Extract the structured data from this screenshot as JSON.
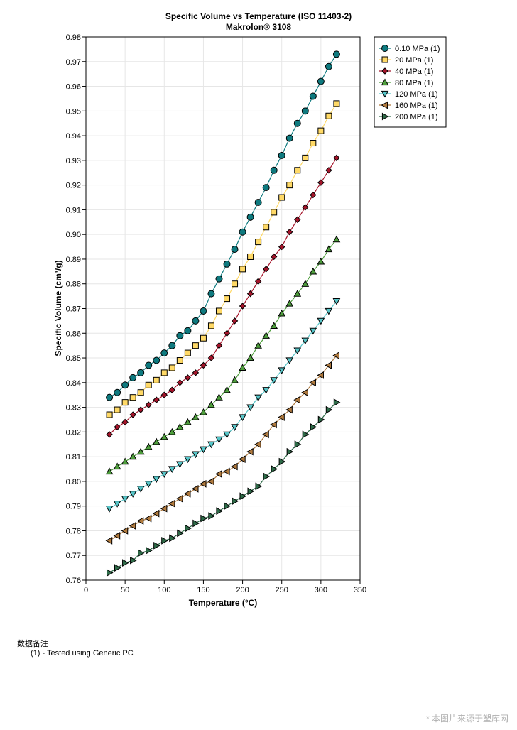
{
  "chart_data": {
    "type": "line",
    "title": "Specific Volume vs Temperature (ISO 11403-2)",
    "subtitle": "Makrolon® 3108",
    "xlabel": "Temperature (°C)",
    "ylabel": "Specific Volume (cm³/g)",
    "xlim": [
      0,
      350
    ],
    "ylim": [
      0.76,
      0.98
    ],
    "xticks": [
      0,
      50,
      100,
      150,
      200,
      250,
      300,
      350
    ],
    "yticks": [
      0.76,
      0.77,
      0.78,
      0.79,
      0.8,
      0.81,
      0.82,
      0.83,
      0.84,
      0.85,
      0.86,
      0.87,
      0.88,
      0.89,
      0.9,
      0.91,
      0.92,
      0.93,
      0.94,
      0.95,
      0.96,
      0.97,
      0.98
    ],
    "grid": true,
    "legend_position": "top-right",
    "x": [
      30,
      40,
      50,
      60,
      70,
      80,
      90,
      100,
      110,
      120,
      130,
      140,
      150,
      160,
      170,
      180,
      190,
      200,
      210,
      220,
      230,
      240,
      250,
      260,
      270,
      280,
      290,
      300,
      310,
      320
    ],
    "series": [
      {
        "name": "0.10 MPa (1)",
        "color": "#0e7a7f",
        "marker": "circle",
        "values": [
          0.834,
          0.836,
          0.839,
          0.842,
          0.844,
          0.847,
          0.849,
          0.852,
          0.855,
          0.859,
          0.861,
          0.865,
          0.869,
          0.876,
          0.882,
          0.888,
          0.894,
          0.901,
          0.907,
          0.913,
          0.919,
          0.926,
          0.932,
          0.939,
          0.945,
          0.95,
          0.956,
          0.962,
          0.968,
          0.973
        ]
      },
      {
        "name": "20 MPa (1)",
        "color": "#ffd966",
        "marker": "square",
        "values": [
          0.827,
          0.829,
          0.832,
          0.834,
          0.836,
          0.839,
          0.841,
          0.844,
          0.846,
          0.849,
          0.852,
          0.855,
          0.858,
          0.863,
          0.869,
          0.874,
          0.88,
          0.886,
          0.891,
          0.897,
          0.903,
          0.909,
          0.915,
          0.92,
          0.926,
          0.931,
          0.937,
          0.942,
          0.948,
          0.953
        ]
      },
      {
        "name": "40 MPa (1)",
        "color": "#a5142a",
        "marker": "diamond",
        "values": [
          0.819,
          0.822,
          0.824,
          0.827,
          0.829,
          0.831,
          0.833,
          0.835,
          0.837,
          0.84,
          0.842,
          0.844,
          0.847,
          0.85,
          0.855,
          0.86,
          0.865,
          0.871,
          0.876,
          0.881,
          0.886,
          0.891,
          0.895,
          0.901,
          0.906,
          0.911,
          0.916,
          0.921,
          0.926,
          0.931
        ]
      },
      {
        "name": "80 MPa (1)",
        "color": "#4e9e3c",
        "marker": "triangle-up",
        "values": [
          0.804,
          0.806,
          0.808,
          0.81,
          0.812,
          0.814,
          0.816,
          0.818,
          0.82,
          0.822,
          0.824,
          0.826,
          0.828,
          0.831,
          0.834,
          0.837,
          0.841,
          0.846,
          0.85,
          0.855,
          0.859,
          0.863,
          0.868,
          0.872,
          0.876,
          0.88,
          0.885,
          0.889,
          0.894,
          0.898
        ]
      },
      {
        "name": "120 MPa (1)",
        "color": "#56c5c8",
        "marker": "triangle-down",
        "values": [
          0.789,
          0.791,
          0.793,
          0.795,
          0.797,
          0.799,
          0.801,
          0.803,
          0.805,
          0.807,
          0.809,
          0.811,
          0.813,
          0.815,
          0.817,
          0.819,
          0.822,
          0.826,
          0.83,
          0.834,
          0.837,
          0.841,
          0.845,
          0.849,
          0.853,
          0.857,
          0.861,
          0.865,
          0.869,
          0.873
        ]
      },
      {
        "name": "160 MPa (1)",
        "color": "#b07a3e",
        "marker": "triangle-left",
        "values": [
          0.776,
          0.778,
          0.78,
          0.782,
          0.784,
          0.785,
          0.787,
          0.789,
          0.791,
          0.793,
          0.795,
          0.797,
          0.799,
          0.8,
          0.803,
          0.804,
          0.806,
          0.809,
          0.812,
          0.815,
          0.819,
          0.823,
          0.826,
          0.829,
          0.833,
          0.836,
          0.84,
          0.843,
          0.847,
          0.851
        ]
      },
      {
        "name": "200 MPa (1)",
        "color": "#2e6b48",
        "marker": "triangle-right",
        "values": [
          0.763,
          0.765,
          0.767,
          0.768,
          0.771,
          0.772,
          0.774,
          0.776,
          0.777,
          0.779,
          0.781,
          0.783,
          0.785,
          0.786,
          0.788,
          0.79,
          0.792,
          0.794,
          0.796,
          0.798,
          0.802,
          0.805,
          0.808,
          0.812,
          0.815,
          0.819,
          0.822,
          0.825,
          0.829,
          0.832
        ]
      }
    ]
  },
  "notes": {
    "title": "数据备注",
    "body": "(1) - Tested using Generic PC"
  },
  "watermark": "* 本图片来源于塑库网"
}
